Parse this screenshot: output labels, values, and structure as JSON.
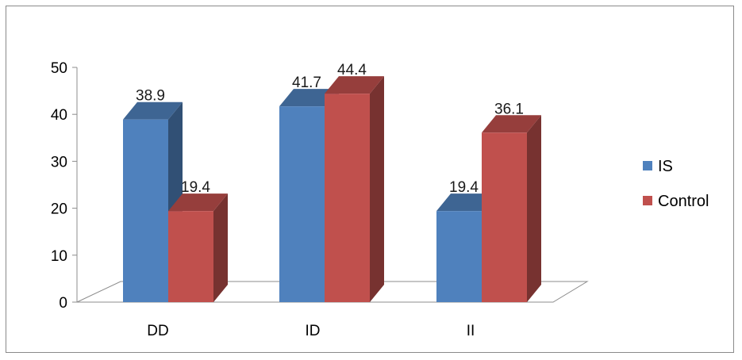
{
  "chart_data": {
    "type": "bar",
    "style": "3d-clustered-column",
    "categories": [
      "DD",
      "ID",
      "II"
    ],
    "series": [
      {
        "name": "IS",
        "values": [
          38.9,
          41.7,
          19.4
        ],
        "color": "#4f81bd"
      },
      {
        "name": "Control",
        "values": [
          19.4,
          44.4,
          36.1
        ],
        "color": "#c0504d"
      }
    ],
    "data_labels": [
      [
        "38.9",
        "41.7",
        "19.4"
      ],
      [
        "19.4",
        "44.4",
        "36.1"
      ]
    ],
    "title": "",
    "xlabel": "",
    "ylabel": "",
    "ylim": [
      0,
      50
    ],
    "yticks": [
      0,
      10,
      20,
      30,
      40,
      50
    ],
    "grid": false,
    "legend_position": "right"
  }
}
